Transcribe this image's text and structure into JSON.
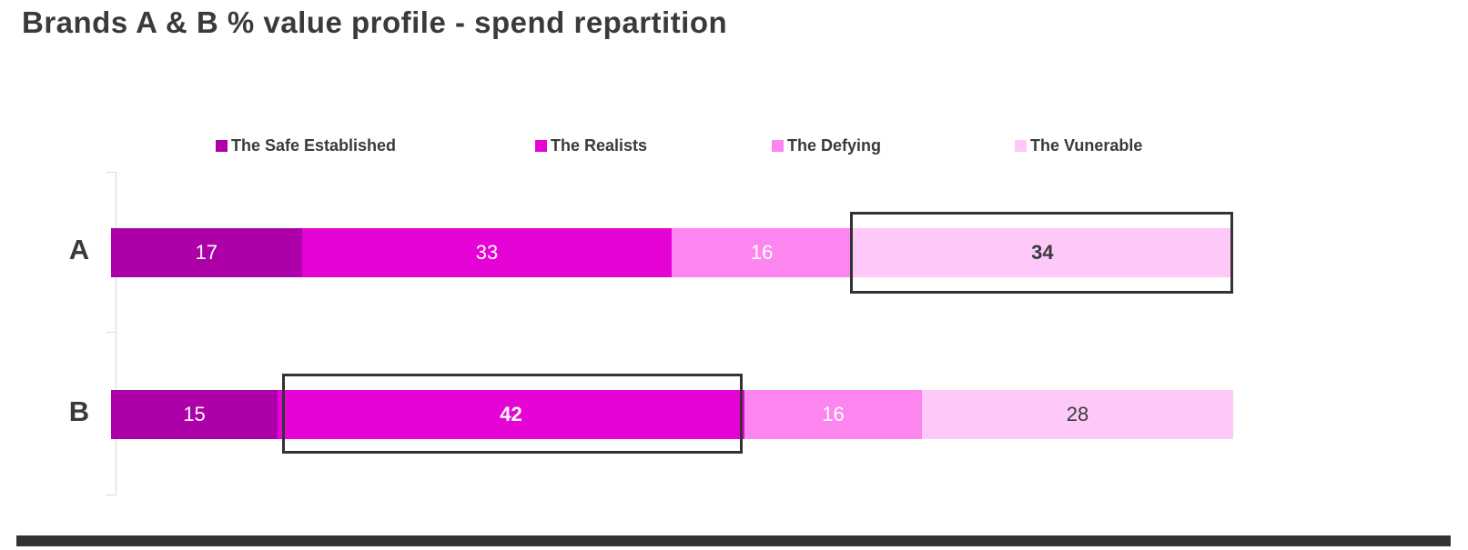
{
  "title": "Brands A & B % value profile - spend repartition",
  "colors": {
    "text": "#3a3a3a",
    "axis": "#d9d9d9",
    "highlight_border": "#333333",
    "bottom_bar": "#333333"
  },
  "chart_data": {
    "type": "bar",
    "stacked": true,
    "orientation": "horizontal",
    "title": "Brands A & B % value profile - spend repartition",
    "grid": false,
    "legend_position": "top",
    "categories": [
      "A",
      "B"
    ],
    "segments": [
      {
        "name": "The Safe Established",
        "color": "#ad00a9",
        "label_color": "#ffffff"
      },
      {
        "name": "The Realists",
        "color": "#e503d6",
        "label_color": "#ffffff"
      },
      {
        "name": "The Defying",
        "color": "#fc85f0",
        "label_color": "#ffffff"
      },
      {
        "name": "The Vunerable",
        "color": "#fec9f8",
        "label_color": "#3a3a3a"
      }
    ],
    "rows": [
      {
        "label": "A",
        "values": [
          17,
          33,
          16,
          34
        ]
      },
      {
        "label": "B",
        "values": [
          15,
          42,
          16,
          28
        ]
      }
    ],
    "series": [
      {
        "name": "The Safe Established",
        "values": [
          17,
          15
        ]
      },
      {
        "name": "The Realists",
        "values": [
          33,
          42
        ]
      },
      {
        "name": "The Defying",
        "values": [
          16,
          16
        ]
      },
      {
        "name": "The Vunerable",
        "values": [
          34,
          28
        ]
      }
    ],
    "highlights": [
      {
        "category": "A",
        "segment": "The Vunerable",
        "value": 34,
        "row_index": 0,
        "segment_index": 3
      },
      {
        "category": "B",
        "segment": "The Realists",
        "value": 42,
        "row_index": 1,
        "segment_index": 1
      }
    ]
  }
}
